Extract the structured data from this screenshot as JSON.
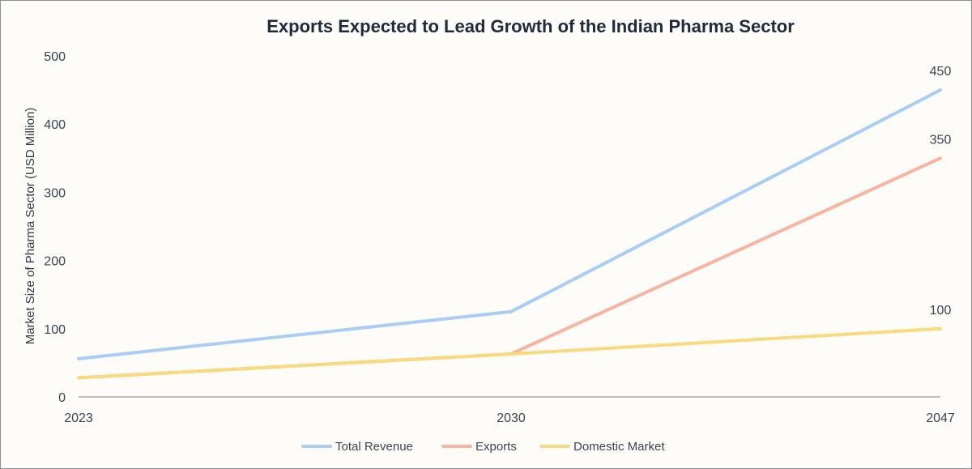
{
  "chart_data": {
    "type": "line",
    "title": "Exports Expected to Lead Growth of the Indian Pharma Sector",
    "xlabel": "",
    "ylabel": "Market Size of Pharma Sector (USD Million)",
    "categories": [
      "2023",
      "2030",
      "2047"
    ],
    "y_ticks": [
      "0",
      "100",
      "200",
      "300",
      "400",
      "500"
    ],
    "ylim": [
      0,
      500
    ],
    "grid": false,
    "legend_position": "bottom",
    "series": [
      {
        "name": "Total Revenue",
        "values": [
          56,
          125,
          450
        ],
        "color": "#a9cdf6",
        "end_label": "450"
      },
      {
        "name": "Exports",
        "values": [
          28,
          63,
          350
        ],
        "color": "#f9b3a1",
        "end_label": "350"
      },
      {
        "name": "Domestic Market",
        "values": [
          28,
          63,
          100
        ],
        "color": "#fbd97f",
        "end_label": "100"
      }
    ]
  }
}
